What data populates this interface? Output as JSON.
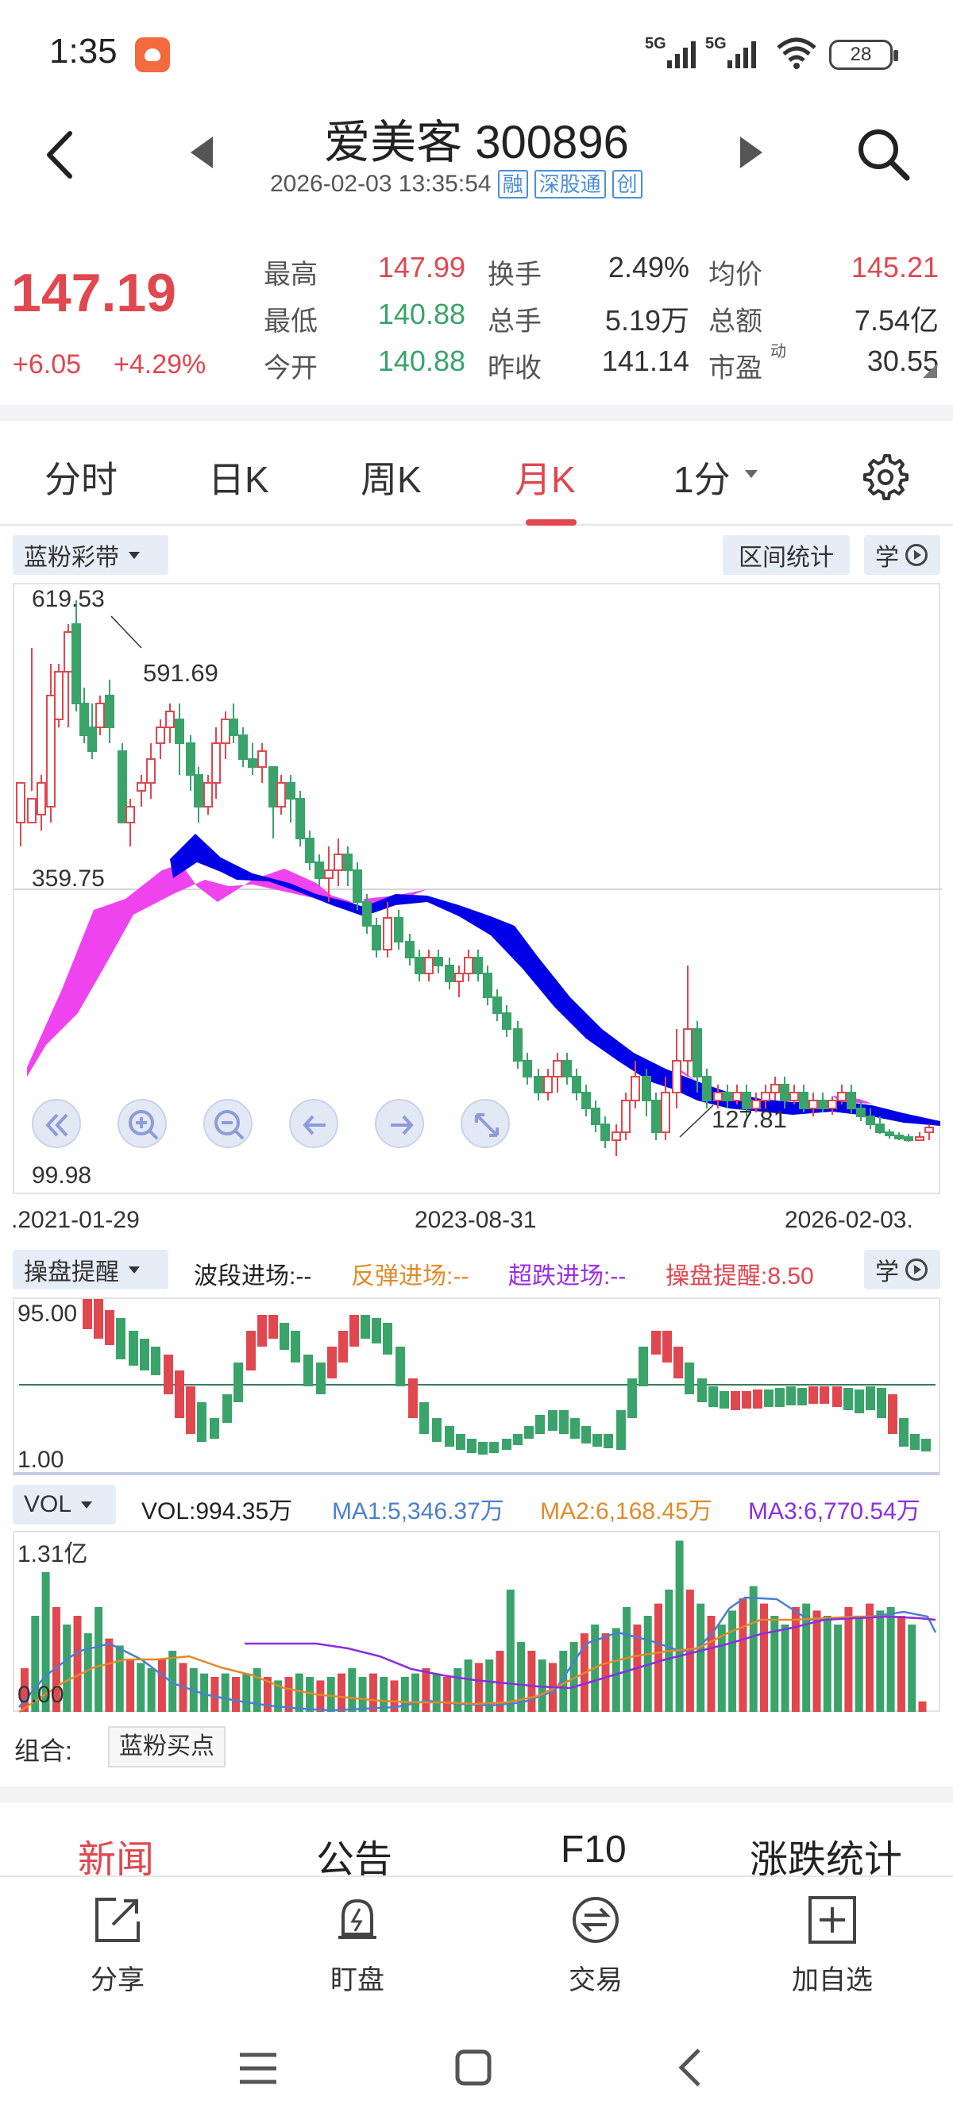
{
  "status_bar": {
    "time": "1:35",
    "network_1": "5G",
    "network_2": "5G",
    "battery": "28"
  },
  "header": {
    "title": "爱美客 300896",
    "datetime": "2026-02-03 13:35:54",
    "tags": [
      "融",
      "深股通",
      "创"
    ]
  },
  "quote": {
    "price": "147.19",
    "change": "+6.05",
    "change_pct": "+4.29%",
    "rows": [
      {
        "l1": "最高",
        "v1": "147.99",
        "l2": "换手",
        "v2": "2.49%",
        "l3": "均价",
        "v3": "145.21"
      },
      {
        "l1": "最低",
        "v1": "140.88",
        "l2": "总手",
        "v2": "5.19万",
        "l3": "总额",
        "v3": "7.54亿"
      },
      {
        "l1": "今开",
        "v1": "140.88",
        "l2": "昨收",
        "v2": "141.14",
        "l3": "市盈",
        "v3": "30.55"
      }
    ],
    "pe_superscript": "动",
    "colors": {
      "up": "#e0474f",
      "down": "#3aa36a"
    }
  },
  "tabs": {
    "items": [
      "分时",
      "日K",
      "周K",
      "月K",
      "1分"
    ],
    "active": "月K"
  },
  "kline": {
    "indicator_selector": "蓝粉彩带",
    "range_stats_button": "区间统计",
    "learn_button": "学",
    "price_high_label": "619.53",
    "price_mid_label": "359.75",
    "price_low_label": "99.98",
    "marker_high": "591.69",
    "marker_low": "127.81",
    "dates": [
      ".2021-01-29",
      "2023-08-31",
      "2026-02-03."
    ],
    "ribbon_colors": {
      "bull": "#f043f0",
      "bear": "#0000e6"
    }
  },
  "indicator": {
    "selector": "操盘提醒",
    "items": [
      {
        "text": "波段进场:--",
        "color": "#333333"
      },
      {
        "text": "反弹进场:--",
        "color": "#e08a2a"
      },
      {
        "text": "超跌进场:--",
        "color": "#9a2ee0"
      },
      {
        "text": "操盘提醒:8.50",
        "color": "#e0474f"
      }
    ],
    "learn_button": "学",
    "top_label": "95.00",
    "bottom_label": "1.00"
  },
  "volume": {
    "selector": "VOL",
    "items": [
      {
        "text": "VOL:994.35万",
        "color": "#222222"
      },
      {
        "text": "MA1:5,346.37万",
        "color": "#4a7fd0"
      },
      {
        "text": "MA2:6,168.45万",
        "color": "#e08a2a"
      },
      {
        "text": "MA3:6,770.54万",
        "color": "#8a2ee0"
      }
    ],
    "top_label": "1.31亿",
    "bottom_label": "0.00"
  },
  "combo": {
    "label": "组合:",
    "button": "蓝粉买点"
  },
  "news_tabs": [
    "新闻",
    "公告",
    "F10",
    "涨跌统计"
  ],
  "actions": [
    "分享",
    "盯盘",
    "交易",
    "加自选"
  ]
}
